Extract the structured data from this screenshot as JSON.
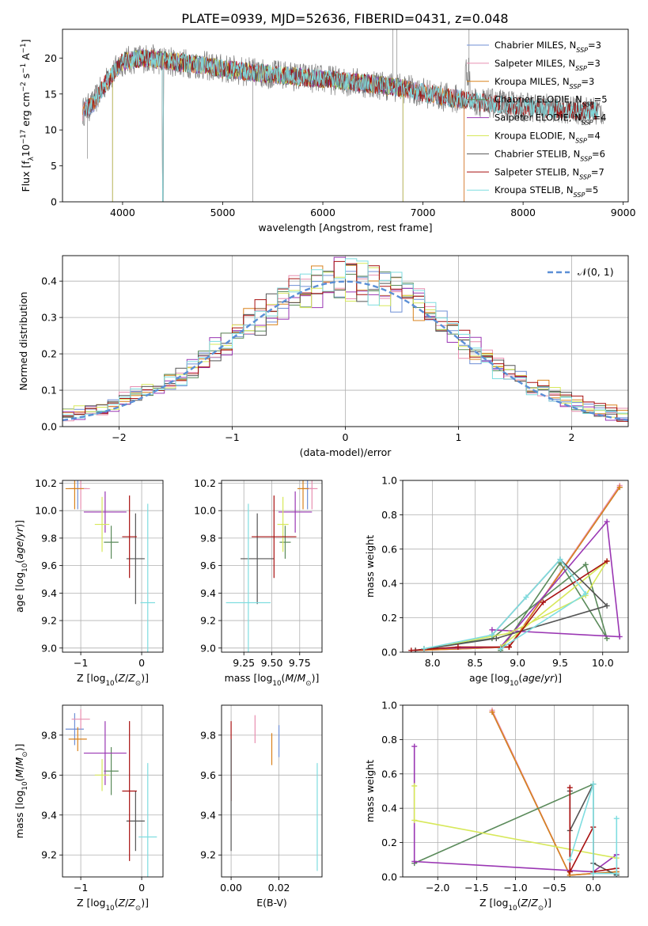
{
  "figure": {
    "title": "PLATE=0939, MJD=52636, FIBERID=0431, z=0.048"
  },
  "colors": {
    "Chabrier MILES": "#6f8fd6",
    "Salpeter MILES": "#e88fb0",
    "Kroupa MILES": "#d9821c",
    "Chabrier ELODIE": "#5a8a5a",
    "Salpeter ELODIE": "#9a36b3",
    "Kroupa ELODIE": "#d7e85a",
    "Chabrier STELIB": "#555555",
    "Salpeter STELIB": "#a81010",
    "Kroupa STELIB": "#7fdde0"
  },
  "chart_data": [
    {
      "id": "spectrum",
      "type": "line",
      "title": "PLATE=0939, MJD=52636, FIBERID=0431, z=0.048",
      "xlabel": "wavelength [Angstrom, rest frame]",
      "ylabel": "Flux [f_λ 10^-17 erg cm^-2 s^-1 A^-1]",
      "xlim": [
        3400,
        9050
      ],
      "ylim": [
        0,
        24
      ],
      "xticks": [
        4000,
        5000,
        6000,
        7000,
        8000,
        9000
      ],
      "yticks": [
        0,
        5,
        10,
        15,
        20
      ],
      "grid": false,
      "legend_position": "top-right",
      "series": [
        {
          "name": "Chabrier MILES",
          "n_ssp": "3"
        },
        {
          "name": "Salpeter MILES",
          "n_ssp": "3"
        },
        {
          "name": "Kroupa MILES",
          "n_ssp": "3"
        },
        {
          "name": "Chabrier ELODIE",
          "n_ssp": "5"
        },
        {
          "name": "Salpeter ELODIE",
          "n_ssp": "4"
        },
        {
          "name": "Kroupa ELODIE",
          "n_ssp": "4"
        },
        {
          "name": "Chabrier STELIB",
          "n_ssp": "6"
        },
        {
          "name": "Salpeter STELIB",
          "n_ssp": "7"
        },
        {
          "name": "Kroupa STELIB",
          "n_ssp": "5"
        }
      ],
      "continuum": {
        "x": [
          3600,
          3700,
          3850,
          4000,
          4200,
          4500,
          4800,
          5000,
          5300,
          5600,
          5900,
          6200,
          6500,
          6800,
          7000,
          7200,
          7400,
          7600,
          7800,
          8000,
          8200,
          8400,
          8600,
          8800
        ],
        "y": [
          12.5,
          13.5,
          17,
          19.5,
          20,
          19.5,
          19,
          18.5,
          18,
          17.6,
          17.2,
          16.8,
          16.4,
          15.8,
          15.2,
          14.6,
          14.2,
          13.8,
          13.5,
          13.2,
          13.0,
          12.8,
          12.7,
          12.6
        ]
      }
    },
    {
      "id": "residuals",
      "type": "histogram",
      "xlabel": "(data-model)/error",
      "ylabel": "Normed distribution",
      "xlim": [
        -2.5,
        2.5
      ],
      "ylim": [
        0,
        0.47
      ],
      "xticks": [
        -2,
        -1,
        0,
        1,
        2
      ],
      "yticks": [
        0.0,
        0.1,
        0.2,
        0.3,
        0.4
      ],
      "grid": true,
      "legend_position": "top-right",
      "legend": [
        "𝒩(0, 1)"
      ],
      "reference_curve": {
        "name": "𝒩(0, 1)",
        "mean": 0,
        "sigma": 1,
        "style": "dashed",
        "color": "#5b8fd6"
      }
    },
    {
      "id": "age-vs-Z",
      "type": "errorbar",
      "xlabel": "Z [log10(Z/Z⊙)]",
      "ylabel": "age  [log10(age/yr)]",
      "xlim": [
        -1.3,
        0.35
      ],
      "ylim": [
        8.97,
        10.22
      ],
      "xticks": [
        -1,
        0
      ],
      "yticks": [
        9.0,
        9.2,
        9.4,
        9.6,
        9.8,
        10.0,
        10.2
      ],
      "grid": true,
      "points": [
        {
          "series": "Chabrier MILES",
          "x": -1.05,
          "y": 10.16,
          "xerr": 0.15,
          "yerr": 0.15
        },
        {
          "series": "Salpeter MILES",
          "x": -1.0,
          "y": 10.16,
          "xerr": 0.15,
          "yerr": 0.15
        },
        {
          "series": "Kroupa MILES",
          "x": -1.1,
          "y": 10.16,
          "xerr": 0.15,
          "yerr": 0.15
        },
        {
          "series": "Chabrier ELODIE",
          "x": -0.5,
          "y": 9.77,
          "xerr": 0.12,
          "yerr": 0.12
        },
        {
          "series": "Salpeter ELODIE",
          "x": -0.6,
          "y": 9.99,
          "xerr": 0.35,
          "yerr": 0.15
        },
        {
          "series": "Kroupa ELODIE",
          "x": -0.65,
          "y": 9.9,
          "xerr": 0.12,
          "yerr": 0.2
        },
        {
          "series": "Chabrier STELIB",
          "x": -0.1,
          "y": 9.65,
          "xerr": 0.15,
          "yerr": 0.33
        },
        {
          "series": "Salpeter STELIB",
          "x": -0.2,
          "y": 9.81,
          "xerr": 0.12,
          "yerr": 0.3
        },
        {
          "series": "Kroupa STELIB",
          "x": 0.1,
          "y": 9.33,
          "xerr": 0.12,
          "yerr": 0.72
        }
      ]
    },
    {
      "id": "age-vs-mass",
      "type": "errorbar",
      "xlabel": "mass [log10(M/M⊙)]",
      "ylabel": "",
      "xlim": [
        9.05,
        9.95
      ],
      "ylim": [
        8.97,
        10.22
      ],
      "xticks": [
        9.25,
        9.5,
        9.75
      ],
      "yticks": [
        9.0,
        9.2,
        9.4,
        9.6,
        9.8,
        10.0,
        10.2
      ],
      "grid": true,
      "points": [
        {
          "series": "Chabrier MILES",
          "x": 9.82,
          "y": 10.16,
          "xerr": 0.05,
          "yerr": 0.15
        },
        {
          "series": "Salpeter MILES",
          "x": 9.86,
          "y": 10.16,
          "xerr": 0.05,
          "yerr": 0.15
        },
        {
          "series": "Kroupa MILES",
          "x": 9.78,
          "y": 10.16,
          "xerr": 0.05,
          "yerr": 0.15
        },
        {
          "series": "Chabrier ELODIE",
          "x": 9.62,
          "y": 9.77,
          "xerr": 0.05,
          "yerr": 0.12
        },
        {
          "series": "Salpeter ELODIE",
          "x": 9.71,
          "y": 9.99,
          "xerr": 0.15,
          "yerr": 0.15
        },
        {
          "series": "Kroupa ELODIE",
          "x": 9.6,
          "y": 9.9,
          "xerr": 0.05,
          "yerr": 0.2
        },
        {
          "series": "Chabrier STELIB",
          "x": 9.37,
          "y": 9.65,
          "xerr": 0.15,
          "yerr": 0.33
        },
        {
          "series": "Salpeter STELIB",
          "x": 9.52,
          "y": 9.81,
          "xerr": 0.2,
          "yerr": 0.3
        },
        {
          "series": "Kroupa STELIB",
          "x": 9.29,
          "y": 9.33,
          "xerr": 0.2,
          "yerr": 0.72
        }
      ]
    },
    {
      "id": "massweight-vs-age",
      "type": "line",
      "xlabel": "age  [log10(age/yr)]",
      "ylabel": "mass weight",
      "xlim": [
        7.65,
        10.3
      ],
      "ylim": [
        0,
        1
      ],
      "xticks": [
        8.0,
        8.5,
        9.0,
        9.5,
        10.0
      ],
      "yticks": [
        0.0,
        0.2,
        0.4,
        0.6,
        0.8,
        1.0
      ],
      "grid": true,
      "series": [
        {
          "name": "Chabrier MILES",
          "x": [
            7.8,
            8.9,
            10.2
          ],
          "y": [
            0.01,
            0.03,
            0.96
          ]
        },
        {
          "name": "Salpeter MILES",
          "x": [
            7.8,
            8.9,
            10.2
          ],
          "y": [
            0.01,
            0.03,
            0.97
          ]
        },
        {
          "name": "Kroupa MILES",
          "x": [
            7.8,
            8.9,
            10.2
          ],
          "y": [
            0.01,
            0.03,
            0.96
          ]
        },
        {
          "name": "Chabrier ELODIE",
          "x": [
            7.9,
            8.7,
            9.8,
            10.05,
            9.5,
            8.8
          ],
          "y": [
            0.02,
            0.08,
            0.51,
            0.08,
            0.52,
            0.01
          ]
        },
        {
          "name": "Salpeter ELODIE",
          "x": [
            7.9,
            8.8,
            10.05,
            10.2,
            8.7
          ],
          "y": [
            0.02,
            0.03,
            0.76,
            0.09,
            0.13
          ]
        },
        {
          "name": "Kroupa ELODIE",
          "x": [
            7.9,
            8.9,
            9.8,
            10.05,
            8.8
          ],
          "y": [
            0.02,
            0.11,
            0.33,
            0.53,
            0.03
          ]
        },
        {
          "name": "Chabrier STELIB",
          "x": [
            8.7,
            9.5,
            10.05,
            8.75,
            7.8
          ],
          "y": [
            0.1,
            0.54,
            0.27,
            0.08,
            0.01
          ]
        },
        {
          "name": "Salpeter STELIB",
          "x": [
            7.75,
            8.3,
            8.9,
            9.3,
            10.05
          ],
          "y": [
            0.01,
            0.03,
            0.03,
            0.29,
            0.53
          ]
        },
        {
          "name": "Kroupa STELIB",
          "x": [
            7.9,
            8.7,
            9.1,
            9.5,
            9.8,
            8.8
          ],
          "y": [
            0.02,
            0.1,
            0.32,
            0.54,
            0.34,
            0.02
          ]
        }
      ]
    },
    {
      "id": "mass-vs-Z",
      "type": "errorbar",
      "xlabel": "Z [log10(Z/Z⊙)]",
      "ylabel": "mass [log10(M/M⊙)]",
      "xlim": [
        -1.3,
        0.35
      ],
      "ylim": [
        9.09,
        9.95
      ],
      "xticks": [
        -1,
        0
      ],
      "yticks": [
        9.2,
        9.4,
        9.6,
        9.8
      ],
      "grid": true,
      "points": [
        {
          "series": "Chabrier MILES",
          "x": -1.1,
          "y": 9.83,
          "xerr": 0.15,
          "yerr": 0.08
        },
        {
          "series": "Salpeter MILES",
          "x": -1.0,
          "y": 9.88,
          "xerr": 0.15,
          "yerr": 0.05
        },
        {
          "series": "Kroupa MILES",
          "x": -1.05,
          "y": 9.78,
          "xerr": 0.15,
          "yerr": 0.06
        },
        {
          "series": "Chabrier ELODIE",
          "x": -0.5,
          "y": 9.62,
          "xerr": 0.12,
          "yerr": 0.12
        },
        {
          "series": "Salpeter ELODIE",
          "x": -0.6,
          "y": 9.71,
          "xerr": 0.35,
          "yerr": 0.16
        },
        {
          "series": "Kroupa ELODIE",
          "x": -0.65,
          "y": 9.6,
          "xerr": 0.12,
          "yerr": 0.08
        },
        {
          "series": "Chabrier STELIB",
          "x": -0.1,
          "y": 9.37,
          "xerr": 0.15,
          "yerr": 0.15
        },
        {
          "series": "Salpeter STELIB",
          "x": -0.2,
          "y": 9.52,
          "xerr": 0.12,
          "yerr": 0.35
        },
        {
          "series": "Kroupa STELIB",
          "x": 0.1,
          "y": 9.29,
          "xerr": 0.15,
          "yerr": 0.37
        }
      ]
    },
    {
      "id": "mass-vs-ebv",
      "type": "errorbar",
      "xlabel": "E(B-V)",
      "ylabel": "",
      "xlim": [
        -0.004,
        0.038
      ],
      "ylim": [
        9.09,
        9.95
      ],
      "xticks": [
        0.0,
        0.02
      ],
      "yticks": [
        9.2,
        9.4,
        9.6,
        9.8
      ],
      "grid": true,
      "points": [
        {
          "series": "Chabrier MILES",
          "x": 0.02,
          "y": 9.77,
          "xerr": 0,
          "yerr": 0.08
        },
        {
          "series": "Salpeter MILES",
          "x": 0.01,
          "y": 9.83,
          "xerr": 0,
          "yerr": 0.07
        },
        {
          "series": "Kroupa MILES",
          "x": 0.017,
          "y": 9.73,
          "xerr": 0,
          "yerr": 0.08
        },
        {
          "series": "Salpeter STELIB",
          "x": 0.0,
          "y": 9.67,
          "xerr": 0,
          "yerr": 0.2
        },
        {
          "series": "Chabrier STELIB",
          "x": 0.0,
          "y": 9.5,
          "xerr": 0,
          "yerr": 0.28
        },
        {
          "series": "Kroupa STELIB",
          "x": 0.036,
          "y": 9.39,
          "xerr": 0,
          "yerr": 0.27
        }
      ]
    },
    {
      "id": "massweight-vs-Z",
      "type": "line",
      "xlabel": "Z [log10(Z/Z⊙)]",
      "ylabel": "mass weight",
      "xlim": [
        -2.45,
        0.45
      ],
      "ylim": [
        0,
        1
      ],
      "xticks": [
        -2.0,
        -1.5,
        -1.0,
        -0.5,
        0.0
      ],
      "yticks": [
        0.0,
        0.2,
        0.4,
        0.6,
        0.8,
        1.0
      ],
      "grid": true,
      "series": [
        {
          "name": "Chabrier MILES",
          "x": [
            -1.3,
            -0.3,
            0.3
          ],
          "y": [
            0.96,
            0.01,
            0.03
          ]
        },
        {
          "name": "Salpeter MILES",
          "x": [
            -1.3,
            -0.3,
            0.3
          ],
          "y": [
            0.97,
            0.01,
            0.03
          ]
        },
        {
          "name": "Kroupa MILES",
          "x": [
            -1.3,
            -0.3,
            0.3
          ],
          "y": [
            0.96,
            0.01,
            0.03
          ]
        },
        {
          "name": "Chabrier ELODIE",
          "x": [
            -2.3,
            0.0,
            0.0,
            0.3,
            0.3
          ],
          "y": [
            0.08,
            0.54,
            0.02,
            0.02,
            0.01
          ]
        },
        {
          "name": "Salpeter ELODIE",
          "x": [
            -2.3,
            -2.3,
            0.0,
            0.3,
            0.3
          ],
          "y": [
            0.76,
            0.09,
            0.03,
            0.13,
            0.02
          ]
        },
        {
          "name": "Kroupa ELODIE",
          "x": [
            -2.3,
            -2.3,
            0.3,
            0.3
          ],
          "y": [
            0.53,
            0.33,
            0.11,
            0.02
          ]
        },
        {
          "name": "Chabrier STELIB",
          "x": [
            -0.3,
            -0.3,
            0.0,
            0.0,
            0.3
          ],
          "y": [
            0.5,
            0.27,
            0.54,
            0.08,
            0.01
          ]
        },
        {
          "name": "Salpeter STELIB",
          "x": [
            -0.3,
            -0.3,
            0.0,
            0.0,
            0.3
          ],
          "y": [
            0.52,
            0.03,
            0.29,
            0.03,
            0.05
          ]
        },
        {
          "name": "Kroupa STELIB",
          "x": [
            -0.3,
            0.0,
            0.0,
            0.3,
            0.3
          ],
          "y": [
            0.1,
            0.54,
            0.02,
            0.02,
            0.34
          ]
        }
      ]
    }
  ]
}
